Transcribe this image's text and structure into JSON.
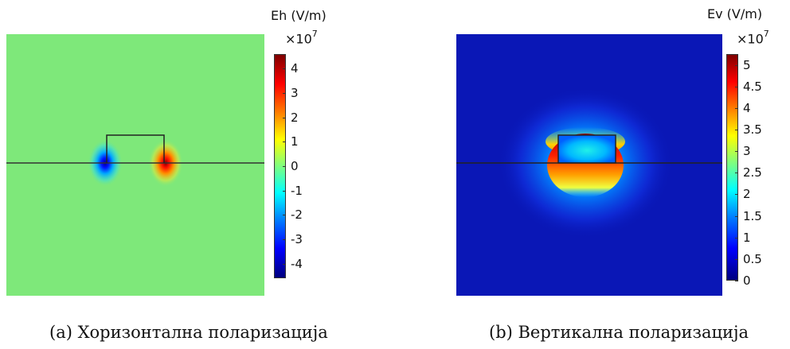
{
  "panels": [
    {
      "id": "a",
      "unit_label": "Eh (V/m)",
      "multiplier_base": "×10",
      "multiplier_exp": "7",
      "colorbar_ticks": [
        "4",
        "3",
        "2",
        "1",
        "0",
        "-1",
        "-2",
        "-3",
        "-4"
      ],
      "colorbar_range": [
        -4.6,
        4.6
      ],
      "caption": "(a) Хоризонтална поларизација"
    },
    {
      "id": "b",
      "unit_label": "Ev (V/m)",
      "multiplier_base": "×10",
      "multiplier_exp": "7",
      "colorbar_ticks": [
        "5",
        "4.5",
        "4",
        "3.5",
        "3",
        "2.5",
        "2",
        "1.5",
        "1",
        "0.5",
        "0"
      ],
      "colorbar_range": [
        0,
        5.25
      ],
      "caption": "(b) Вертикална поларизација"
    }
  ],
  "colors": {
    "field_a_background": "#7ee87a",
    "field_b_background": "#0a17b6",
    "colormap": [
      "#00007f",
      "#0000ff",
      "#007fff",
      "#00ffff",
      "#7fff7f",
      "#ffff00",
      "#ff7f00",
      "#ff0000",
      "#7f0000"
    ]
  }
}
